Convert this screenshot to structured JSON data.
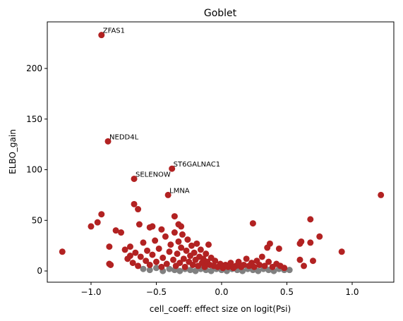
{
  "chart_data": {
    "type": "scatter",
    "title": "Goblet",
    "xlabel": "cell_coeff: effect size on logit(Psi)",
    "ylabel": "ELBO_gain",
    "xlim": [
      -1.335,
      1.319
    ],
    "ylim": [
      -11.1,
      246
    ],
    "xticks": [
      {
        "value": -1.0,
        "label": "−1.0"
      },
      {
        "value": -0.5,
        "label": "−0.5"
      },
      {
        "value": 0.0,
        "label": "0.0"
      },
      {
        "value": 0.5,
        "label": "0.5"
      },
      {
        "value": 1.0,
        "label": "1.0"
      }
    ],
    "yticks": [
      0,
      50,
      100,
      150,
      200
    ],
    "series": [
      {
        "color": "#808080",
        "x": [
          -0.6,
          -0.55,
          -0.5,
          -0.45,
          -0.4,
          -0.36,
          -0.32,
          -0.28,
          -0.24,
          -0.2,
          -0.16,
          -0.12,
          -0.08,
          -0.04,
          0,
          0.04,
          0.08,
          0.12,
          0.16,
          0.2,
          0.24,
          0.28,
          0.32,
          0.36,
          0.4,
          0.44,
          0.48,
          0.52
        ],
        "values": [
          2,
          1,
          3,
          0,
          2,
          1,
          0,
          2,
          1,
          0,
          2,
          1,
          0,
          2,
          1,
          0,
          2,
          1,
          0,
          2,
          1,
          0,
          2,
          1,
          0,
          2,
          1,
          1
        ]
      },
      {
        "color": "#b22222",
        "x": [
          -1.22,
          -1.0,
          -0.95,
          -0.92,
          -0.86,
          -0.86,
          -0.85,
          -0.81,
          -0.77,
          -0.74,
          -0.7,
          -0.67,
          -0.64,
          -0.63,
          -0.55,
          -0.53,
          -0.46,
          -0.36,
          -0.33,
          -0.31,
          0.24,
          0.37,
          0.35,
          0.44,
          0.6,
          0.61,
          0.6,
          0.63,
          0.68,
          0.68,
          0.7,
          0.75,
          0.92,
          1.22,
          -0.92,
          -0.87,
          -0.38,
          -0.67,
          -0.41,
          -0.72,
          -0.7,
          -0.68,
          -0.66,
          -0.64,
          -0.62,
          -0.6,
          -0.58,
          -0.57,
          -0.55,
          -0.53,
          -0.51,
          -0.5,
          -0.48,
          -0.46,
          -0.45,
          -0.43,
          -0.42,
          -0.4,
          -0.39,
          -0.37,
          -0.36,
          -0.35,
          -0.34,
          -0.33,
          -0.32,
          -0.31,
          -0.3,
          -0.29,
          -0.28,
          -0.27,
          -0.26,
          -0.25,
          -0.24,
          -0.23,
          -0.22,
          -0.21,
          -0.2,
          -0.19,
          -0.18,
          -0.17,
          -0.16,
          -0.15,
          -0.14,
          -0.13,
          -0.12,
          -0.11,
          -0.1,
          -0.09,
          -0.08,
          -0.06,
          -0.05,
          -0.03,
          -0.01,
          0.01,
          0.03,
          0.05,
          0.07,
          0.09,
          0.11,
          0.13,
          0.15,
          0.17,
          0.19,
          0.21,
          0.23,
          0.25,
          0.27,
          0.29,
          0.31,
          0.33,
          0.36,
          0.39,
          0.42,
          0.45,
          0.48
        ],
        "values": [
          19,
          44,
          48,
          56,
          24,
          7,
          6,
          40,
          38,
          21,
          15,
          66,
          61,
          46,
          43,
          44,
          41,
          54,
          46,
          44,
          47,
          27,
          23,
          22,
          27,
          29,
          11,
          5,
          51,
          28,
          10,
          34,
          19,
          75,
          233,
          128,
          101,
          91,
          75,
          12,
          24,
          8,
          18,
          5,
          14,
          28,
          10,
          20,
          6,
          16,
          30,
          9,
          22,
          4,
          13,
          34,
          7,
          19,
          26,
          11,
          38,
          5,
          17,
          29,
          8,
          23,
          36,
          12,
          4,
          20,
          31,
          9,
          15,
          25,
          6,
          18,
          11,
          27,
          5,
          14,
          21,
          8,
          12,
          4,
          17,
          9,
          26,
          6,
          13,
          5,
          10,
          4,
          7,
          3,
          6,
          4,
          8,
          3,
          5,
          9,
          4,
          6,
          12,
          5,
          8,
          4,
          10,
          6,
          14,
          5,
          9,
          4,
          7,
          5,
          3
        ]
      }
    ],
    "annotations": [
      {
        "text": "ZFAS1",
        "x": -0.92,
        "y": 233
      },
      {
        "text": "NEDD4L",
        "x": -0.87,
        "y": 128
      },
      {
        "text": "ST6GALNAC1",
        "x": -0.38,
        "y": 101
      },
      {
        "text": "SELENOW",
        "x": -0.67,
        "y": 91
      },
      {
        "text": "LMNA",
        "x": -0.41,
        "y": 75
      }
    ]
  }
}
